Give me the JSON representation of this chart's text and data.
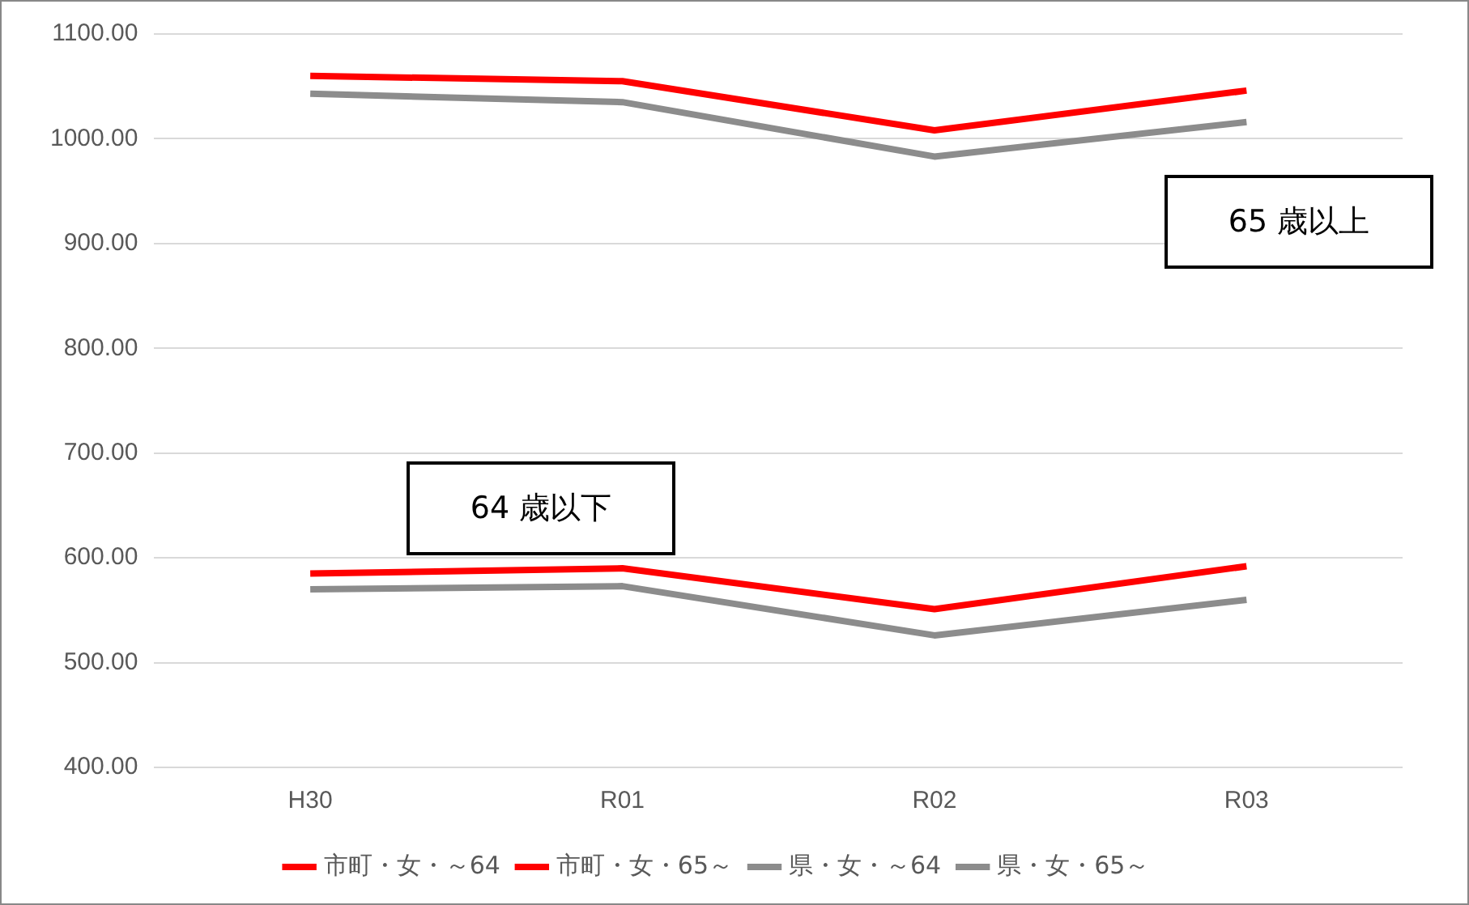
{
  "chart_data": {
    "type": "line",
    "categories": [
      "H30",
      "R01",
      "R02",
      "R03"
    ],
    "series": [
      {
        "name": "市町・女・～64",
        "color": "#ff0000",
        "values": [
          585,
          590,
          551,
          592
        ]
      },
      {
        "name": "市町・女・65～",
        "color": "#ff0000",
        "values": [
          1060,
          1055,
          1008,
          1046
        ]
      },
      {
        "name": "県・女・～64",
        "color": "#8c8c8c",
        "values": [
          570,
          573,
          526,
          560
        ]
      },
      {
        "name": "県・女・65～",
        "color": "#8c8c8c",
        "values": [
          1043,
          1035,
          983,
          1016
        ]
      }
    ],
    "ylim": [
      400,
      1100
    ],
    "yticks": [
      {
        "value": 400,
        "label": "400.00"
      },
      {
        "value": 500,
        "label": "500.00"
      },
      {
        "value": 600,
        "label": "600.00"
      },
      {
        "value": 700,
        "label": "700.00"
      },
      {
        "value": 800,
        "label": "800.00"
      },
      {
        "value": 900,
        "label": "900.00"
      },
      {
        "value": 1000,
        "label": "1000.00"
      },
      {
        "value": 1100,
        "label": "1100.00"
      }
    ],
    "annotations": [
      "65 歳以上",
      "64 歳以下"
    ],
    "grid": "y",
    "legend": "bottom",
    "marker": "none",
    "line_style": "solid"
  }
}
